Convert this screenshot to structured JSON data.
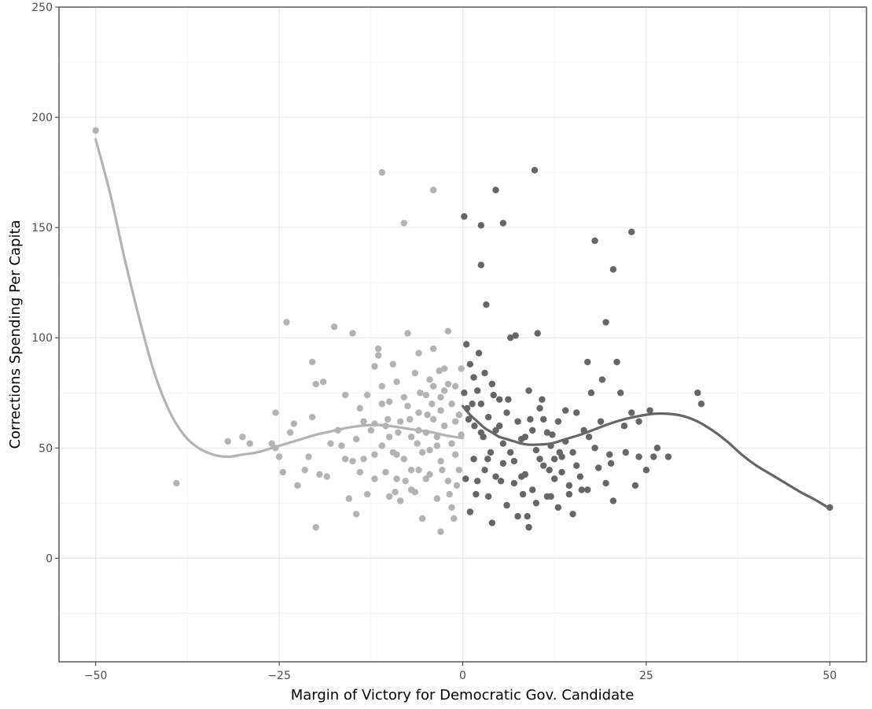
{
  "chart_data": {
    "type": "scatter",
    "title": "",
    "xlabel": "Margin of Victory for Democratic Gov. Candidate",
    "ylabel": "Corrections Spending Per Capita",
    "xlim": [
      -55,
      55
    ],
    "ylim": [
      -47,
      250
    ],
    "x_ticks": [
      -50,
      -25,
      0,
      25,
      50
    ],
    "y_ticks": [
      0,
      50,
      100,
      150,
      200,
      250
    ],
    "x_tick_labels": [
      "−50",
      "−25",
      "0",
      "25",
      "50"
    ],
    "y_tick_labels": [
      "0",
      "50",
      "100",
      "150",
      "200",
      "250"
    ],
    "grid": true,
    "legend": "none",
    "colors": {
      "left": "#b3b3b3",
      "right": "#666666"
    },
    "series": [
      {
        "points": [
          [
            -50,
            194
          ],
          [
            -39,
            34
          ],
          [
            -32,
            53
          ],
          [
            -30,
            55
          ],
          [
            -29,
            52
          ],
          [
            -26,
            52
          ],
          [
            -25.5,
            66
          ],
          [
            -25.5,
            50
          ],
          [
            -25,
            46
          ],
          [
            -24.5,
            39
          ],
          [
            -24,
            107
          ],
          [
            -23.5,
            57
          ],
          [
            -23,
            61
          ],
          [
            -22.5,
            33
          ],
          [
            -21.5,
            40
          ],
          [
            -21,
            46
          ],
          [
            -20.5,
            64
          ],
          [
            -20.5,
            89
          ],
          [
            -20,
            79
          ],
          [
            -20,
            14
          ],
          [
            -19.5,
            38
          ],
          [
            -19,
            80
          ],
          [
            -18.5,
            37
          ],
          [
            -18,
            52
          ],
          [
            -17.5,
            105
          ],
          [
            -17,
            58
          ],
          [
            -16.5,
            51
          ],
          [
            -16,
            74
          ],
          [
            -15.5,
            27
          ],
          [
            -15,
            44
          ],
          [
            -15,
            102
          ],
          [
            -14.5,
            54
          ],
          [
            -14.5,
            20
          ],
          [
            -14,
            39
          ],
          [
            -13.5,
            62
          ],
          [
            -13,
            74
          ],
          [
            -13,
            29
          ],
          [
            -12.5,
            58
          ],
          [
            -12,
            47
          ],
          [
            -12,
            87
          ],
          [
            -11.5,
            95
          ],
          [
            -11.5,
            92
          ],
          [
            -11,
            78
          ],
          [
            -11,
            51
          ],
          [
            -10.5,
            60
          ],
          [
            -10.5,
            39
          ],
          [
            -10,
            71
          ],
          [
            -10,
            28
          ],
          [
            -9.5,
            48
          ],
          [
            -9.5,
            88
          ],
          [
            -9,
            36
          ],
          [
            -8.5,
            62
          ],
          [
            -8.5,
            26
          ],
          [
            -11,
            175
          ],
          [
            -4,
            167
          ],
          [
            -8,
            152
          ],
          [
            -8,
            73
          ],
          [
            -7.5,
            69
          ],
          [
            -7.5,
            102
          ],
          [
            -7,
            55
          ],
          [
            -7,
            40
          ],
          [
            -6.5,
            84
          ],
          [
            -6.5,
            30
          ],
          [
            -6,
            93
          ],
          [
            -6,
            66
          ],
          [
            -5.5,
            48
          ],
          [
            -5.5,
            18
          ],
          [
            -5,
            74
          ],
          [
            -5,
            57
          ],
          [
            -4.5,
            81
          ],
          [
            -4.5,
            38
          ],
          [
            -4,
            63
          ],
          [
            -4,
            95
          ],
          [
            -3.5,
            51
          ],
          [
            -3.5,
            27
          ],
          [
            -3,
            73
          ],
          [
            -3,
            44
          ],
          [
            -2.5,
            86
          ],
          [
            -2.5,
            60
          ],
          [
            -2,
            103
          ],
          [
            -2,
            35
          ],
          [
            -1.5,
            70
          ],
          [
            -1.5,
            52
          ],
          [
            -1.5,
            23
          ],
          [
            -1,
            78
          ],
          [
            -1,
            47
          ],
          [
            -0.5,
            65
          ],
          [
            -0.5,
            40
          ],
          [
            -0.2,
            56
          ],
          [
            -0.2,
            86
          ],
          [
            -2,
            79
          ],
          [
            -2.5,
            76
          ],
          [
            -3,
            12
          ],
          [
            -6,
            40
          ],
          [
            -7,
            31
          ],
          [
            -9,
            47
          ],
          [
            -12,
            36
          ],
          [
            -13.5,
            45
          ],
          [
            -16,
            45
          ],
          [
            -8,
            45
          ],
          [
            -5,
            36
          ],
          [
            -3,
            67
          ],
          [
            -4,
            78
          ],
          [
            -6,
            58
          ],
          [
            -10,
            55
          ],
          [
            -12,
            61
          ],
          [
            -14,
            68
          ],
          [
            -9,
            80
          ],
          [
            -11,
            70
          ],
          [
            -4.5,
            49
          ],
          [
            -3.5,
            55
          ],
          [
            -1,
            62
          ],
          [
            -1.8,
            29
          ],
          [
            -2.8,
            40
          ],
          [
            -4.2,
            70
          ],
          [
            -5.8,
            75
          ],
          [
            -7.2,
            63
          ],
          [
            -8.8,
            57
          ],
          [
            -10.2,
            63
          ],
          [
            -0.8,
            33
          ],
          [
            -1.2,
            18
          ],
          [
            -4.8,
            65
          ],
          [
            -6.2,
            52
          ],
          [
            -3.2,
            85
          ],
          [
            -7.8,
            35
          ],
          [
            -9.2,
            30
          ]
        ],
        "fit": [
          [
            -50,
            190
          ],
          [
            -48,
            165
          ],
          [
            -46,
            135
          ],
          [
            -44,
            108
          ],
          [
            -42,
            84
          ],
          [
            -40,
            67
          ],
          [
            -38,
            56
          ],
          [
            -36,
            50
          ],
          [
            -34,
            47
          ],
          [
            -32,
            46
          ],
          [
            -30,
            47
          ],
          [
            -28,
            48
          ],
          [
            -26,
            50
          ],
          [
            -24,
            52
          ],
          [
            -22,
            54
          ],
          [
            -20,
            56
          ],
          [
            -18,
            57.5
          ],
          [
            -16,
            59
          ],
          [
            -14,
            60
          ],
          [
            -12,
            60.5
          ],
          [
            -10,
            60
          ],
          [
            -8,
            59
          ],
          [
            -6,
            58
          ],
          [
            -4,
            57
          ],
          [
            -2,
            55.5
          ],
          [
            0,
            54.5
          ]
        ]
      },
      {
        "points": [
          [
            0.2,
            155
          ],
          [
            9.8,
            176
          ],
          [
            4.5,
            167
          ],
          [
            5.5,
            152
          ],
          [
            2.5,
            151
          ],
          [
            2.5,
            133
          ],
          [
            3.2,
            115
          ],
          [
            23,
            148
          ],
          [
            18,
            144
          ],
          [
            20.5,
            131
          ],
          [
            19.5,
            107
          ],
          [
            21,
            89
          ],
          [
            17,
            89
          ],
          [
            0.5,
            97
          ],
          [
            1,
            88
          ],
          [
            1.5,
            82
          ],
          [
            2,
            76
          ],
          [
            2.5,
            70
          ],
          [
            3,
            84
          ],
          [
            3.5,
            64
          ],
          [
            4,
            79
          ],
          [
            4.5,
            58
          ],
          [
            5,
            72
          ],
          [
            5.5,
            52
          ],
          [
            6,
            66
          ],
          [
            6.5,
            100
          ],
          [
            7,
            44
          ],
          [
            7.5,
            62
          ],
          [
            8,
            37
          ],
          [
            8.5,
            55
          ],
          [
            9,
            76
          ],
          [
            9.5,
            31
          ],
          [
            10,
            49
          ],
          [
            10.5,
            68
          ],
          [
            11,
            42
          ],
          [
            11.5,
            57
          ],
          [
            12,
            28
          ],
          [
            12.5,
            45
          ],
          [
            13,
            62
          ],
          [
            13.5,
            39
          ],
          [
            14,
            53
          ],
          [
            14.5,
            33
          ],
          [
            15,
            48
          ],
          [
            15.5,
            66
          ],
          [
            16,
            37
          ],
          [
            16.5,
            58
          ],
          [
            17,
            31
          ],
          [
            17.5,
            75
          ],
          [
            18,
            50
          ],
          [
            18.5,
            41
          ],
          [
            19,
            81
          ],
          [
            19.5,
            34
          ],
          [
            20,
            47
          ],
          [
            20.5,
            26
          ],
          [
            21.5,
            75
          ],
          [
            22,
            60
          ],
          [
            23,
            66
          ],
          [
            23.5,
            33
          ],
          [
            24,
            46
          ],
          [
            24,
            62
          ],
          [
            25,
            40
          ],
          [
            25.5,
            67
          ],
          [
            26,
            46
          ],
          [
            26.5,
            50
          ],
          [
            28,
            46
          ],
          [
            32,
            75
          ],
          [
            32.5,
            70
          ],
          [
            50,
            23
          ],
          [
            1,
            21
          ],
          [
            1.5,
            45
          ],
          [
            2,
            35
          ],
          [
            2.5,
            57
          ],
          [
            3,
            40
          ],
          [
            3.5,
            28
          ],
          [
            4,
            16
          ],
          [
            4.5,
            37
          ],
          [
            5,
            60
          ],
          [
            5.5,
            43
          ],
          [
            6,
            24
          ],
          [
            6.5,
            48
          ],
          [
            7,
            34
          ],
          [
            7.5,
            19
          ],
          [
            8,
            54
          ],
          [
            8.5,
            38
          ],
          [
            9,
            14
          ],
          [
            9.5,
            58
          ],
          [
            10,
            25
          ],
          [
            10.5,
            45
          ],
          [
            11,
            63
          ],
          [
            11.5,
            28
          ],
          [
            12,
            51
          ],
          [
            12.5,
            36
          ],
          [
            13,
            23
          ],
          [
            13.5,
            46
          ],
          [
            14,
            67
          ],
          [
            14.5,
            29
          ],
          [
            15,
            20
          ],
          [
            15.5,
            42
          ],
          [
            0.2,
            75
          ],
          [
            0.8,
            63
          ],
          [
            1.3,
            70
          ],
          [
            2.2,
            93
          ],
          [
            3.8,
            48
          ],
          [
            5.2,
            35
          ],
          [
            6.2,
            72
          ],
          [
            7.2,
            101
          ],
          [
            8.2,
            29
          ],
          [
            9.2,
            63
          ],
          [
            10.2,
            102
          ],
          [
            10.8,
            72
          ],
          [
            12.2,
            56
          ],
          [
            13.2,
            48
          ],
          [
            0.6,
            68
          ],
          [
            1.6,
            60
          ],
          [
            2.8,
            55
          ],
          [
            4.2,
            74
          ],
          [
            0.4,
            36
          ],
          [
            1.8,
            29
          ],
          [
            3.4,
            45
          ],
          [
            8.8,
            19
          ],
          [
            11.8,
            40
          ],
          [
            16.2,
            31
          ],
          [
            18.8,
            62
          ],
          [
            20.2,
            43
          ],
          [
            22.2,
            48
          ],
          [
            17.2,
            55
          ]
        ],
        "fit": [
          [
            0,
            69
          ],
          [
            1,
            65
          ],
          [
            2,
            62
          ],
          [
            3,
            59
          ],
          [
            4,
            57
          ],
          [
            5,
            55
          ],
          [
            6,
            54
          ],
          [
            7,
            53
          ],
          [
            8,
            52
          ],
          [
            9,
            51.5
          ],
          [
            10,
            51.5
          ],
          [
            12,
            52
          ],
          [
            14,
            54
          ],
          [
            16,
            56
          ],
          [
            18,
            58.5
          ],
          [
            20,
            61
          ],
          [
            22,
            63
          ],
          [
            24,
            64.5
          ],
          [
            26,
            65.5
          ],
          [
            28,
            65.5
          ],
          [
            30,
            64.5
          ],
          [
            32,
            62
          ],
          [
            34,
            58
          ],
          [
            36,
            53
          ],
          [
            38,
            47
          ],
          [
            40,
            42
          ],
          [
            42,
            38
          ],
          [
            44,
            34
          ],
          [
            46,
            30
          ],
          [
            48,
            26.5
          ],
          [
            50,
            22.5
          ]
        ]
      }
    ]
  }
}
